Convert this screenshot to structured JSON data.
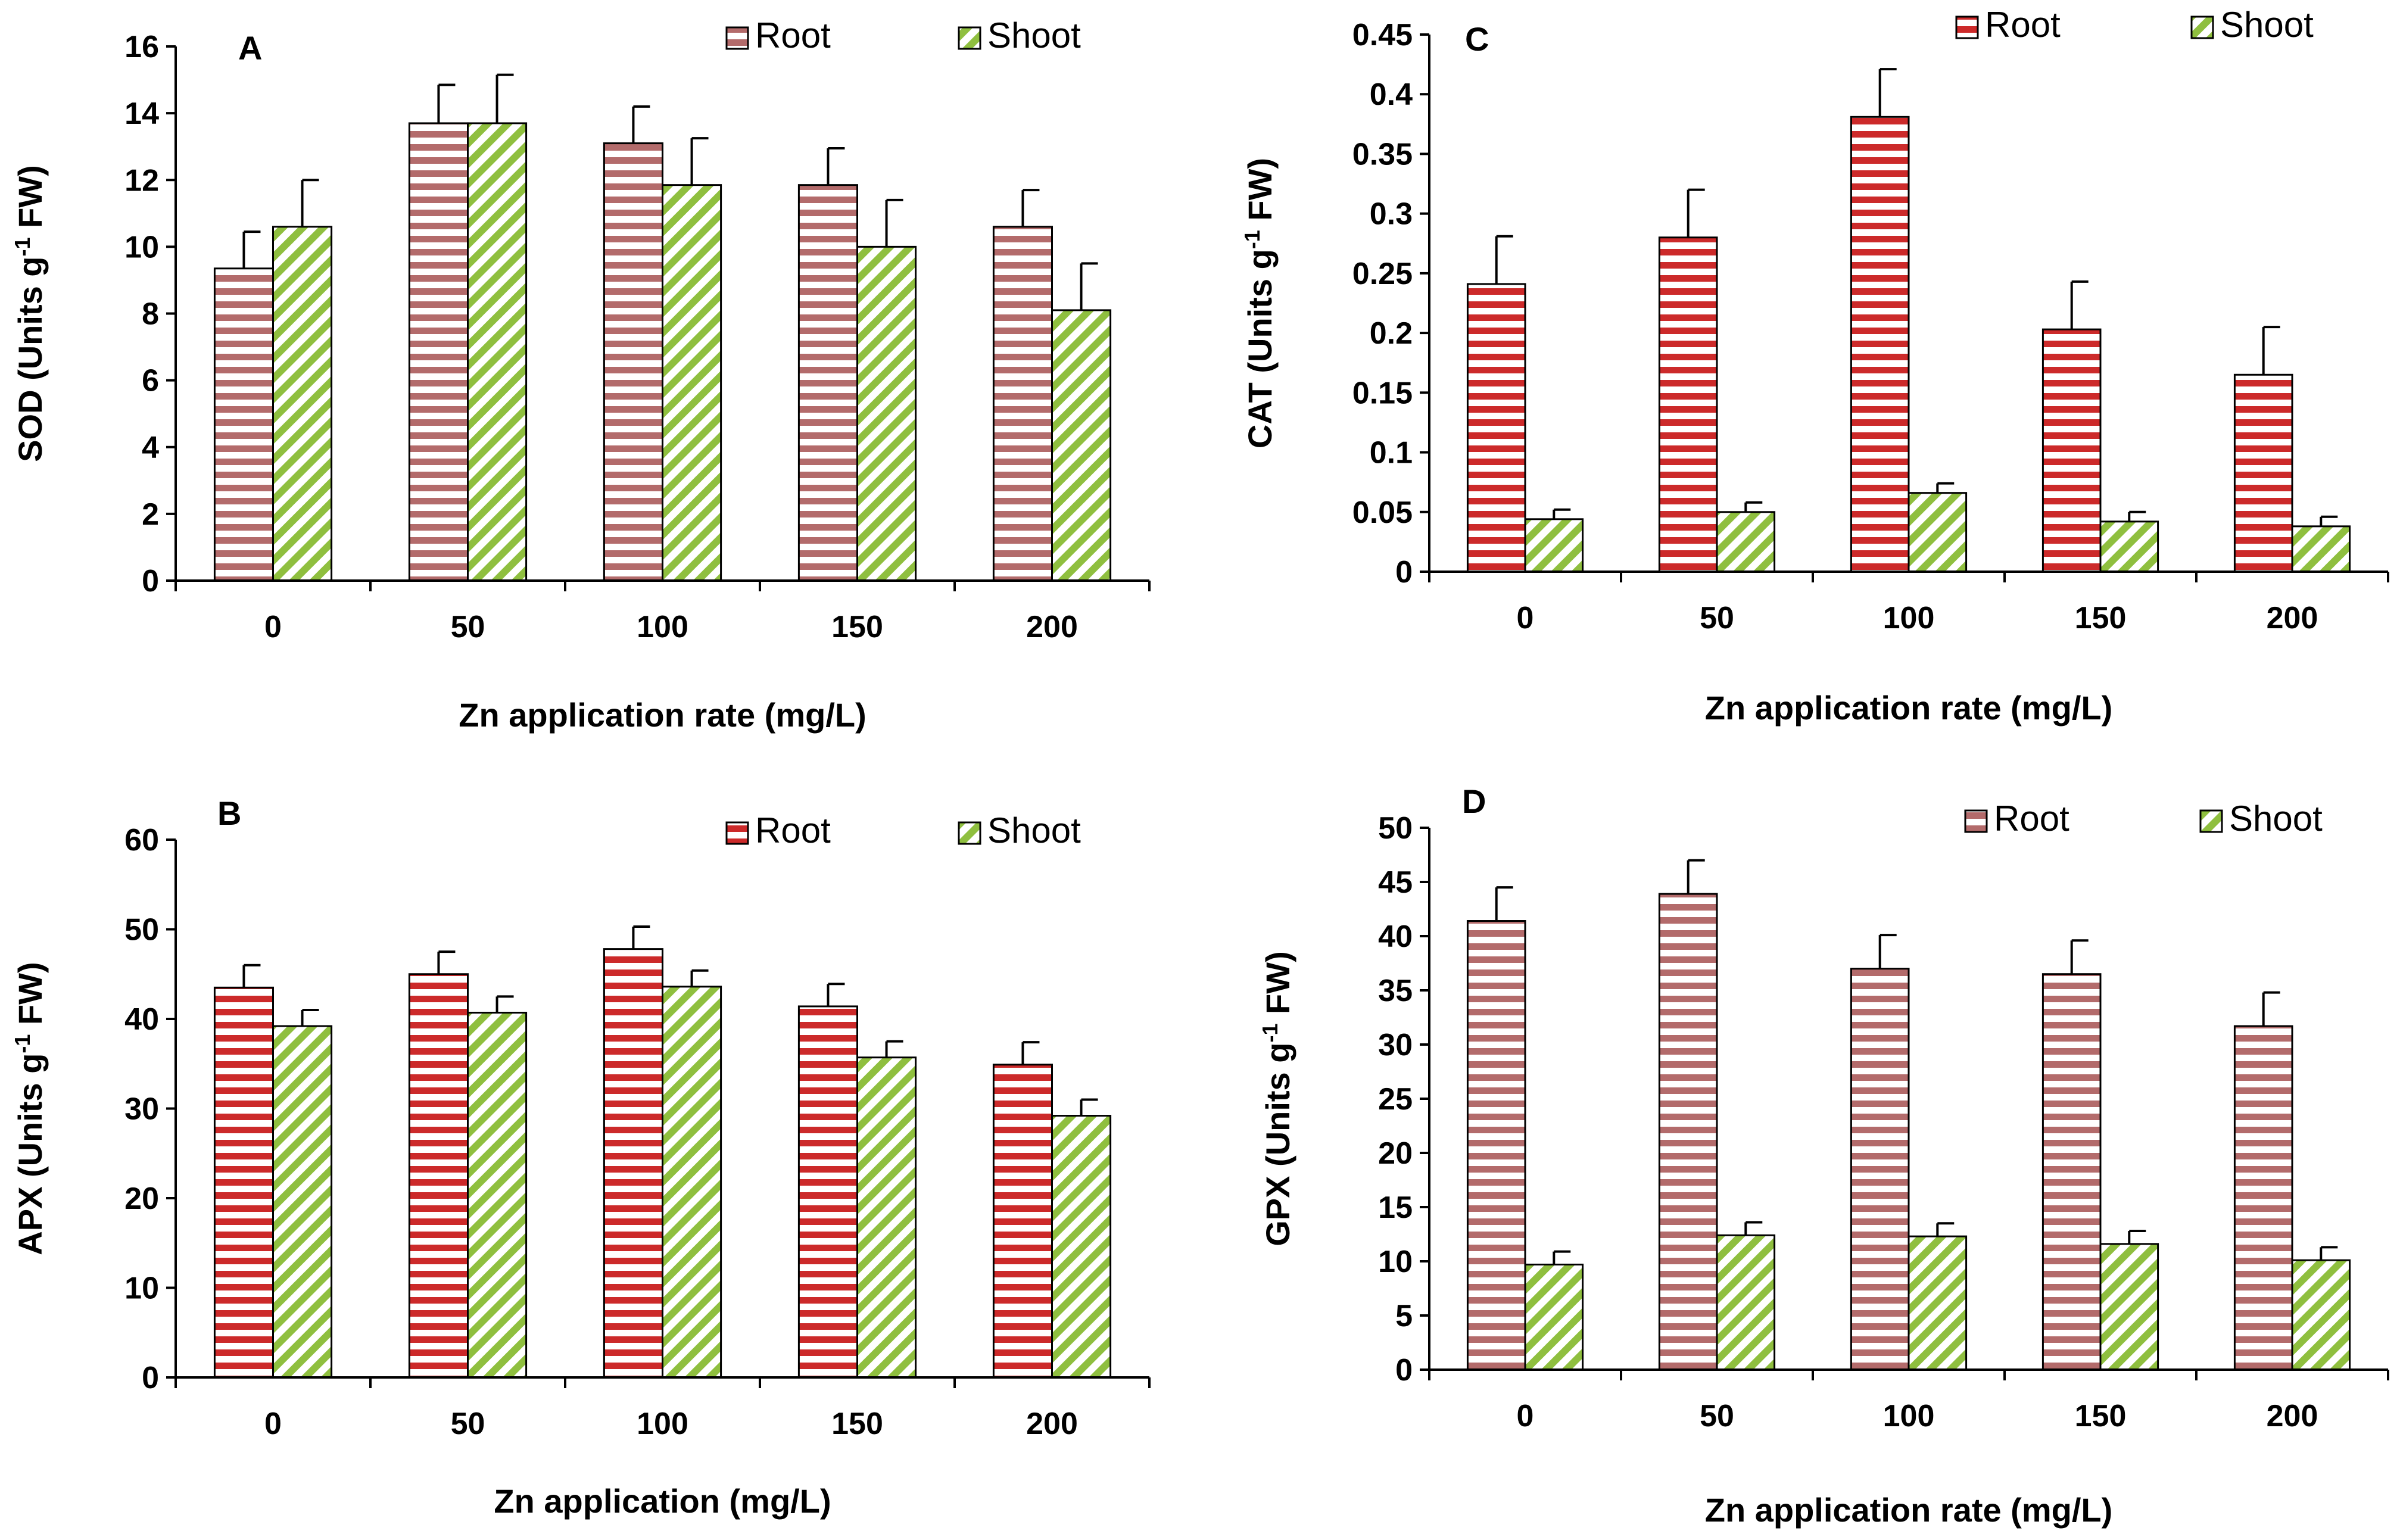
{
  "colors": {
    "root_fill": "#cc3333",
    "root_fill_light": "#b36b6b",
    "root_stripe": "#ffffff",
    "shoot_fill": "#8fbf3f",
    "shoot_stripe": "#ffffff",
    "axis": "#000000"
  },
  "chart_data": [
    {
      "panel": "A",
      "type": "bar",
      "root_style": "light",
      "categories": [
        "0",
        "50",
        "100",
        "150",
        "200"
      ],
      "series": [
        {
          "name": "Root",
          "values": [
            9.35,
            13.7,
            13.1,
            11.85,
            10.6
          ],
          "errors": [
            1.1,
            1.15,
            1.1,
            1.1,
            1.1
          ]
        },
        {
          "name": "Shoot",
          "values": [
            10.6,
            13.7,
            11.85,
            10.0,
            8.1
          ],
          "errors": [
            1.4,
            1.45,
            1.4,
            1.4,
            1.4
          ]
        }
      ],
      "ylabel_main": "SOD (Units g",
      "ylabel_sup": "-1",
      "ylabel_tail": " FW)",
      "xlabel": "Zn application rate (mg/L)",
      "ylim": [
        0,
        16
      ],
      "yticks": [
        "0",
        "2",
        "4",
        "6",
        "8",
        "10",
        "12",
        "14",
        "16"
      ],
      "legend_position": "top-right"
    },
    {
      "panel": "B",
      "type": "bar",
      "root_style": "bright",
      "categories": [
        "0",
        "50",
        "100",
        "150",
        "200"
      ],
      "series": [
        {
          "name": "Root",
          "values": [
            43.5,
            45.0,
            47.8,
            41.4,
            34.9
          ],
          "errors": [
            2.5,
            2.5,
            2.5,
            2.5,
            2.5
          ]
        },
        {
          "name": "Shoot",
          "values": [
            39.2,
            40.7,
            43.6,
            35.7,
            29.2
          ],
          "errors": [
            1.8,
            1.8,
            1.8,
            1.8,
            1.8
          ]
        }
      ],
      "ylabel_main": "APX (Units g",
      "ylabel_sup": "-1",
      "ylabel_tail": " FW)",
      "xlabel": "Zn application (mg/L)",
      "ylim": [
        0,
        60
      ],
      "yticks": [
        "0",
        "10",
        "20",
        "30",
        "40",
        "50",
        "60"
      ],
      "legend_position": "top-right"
    },
    {
      "panel": "C",
      "type": "bar",
      "root_style": "bright",
      "categories": [
        "0",
        "50",
        "100",
        "150",
        "200"
      ],
      "series": [
        {
          "name": "Root",
          "values": [
            0.241,
            0.28,
            0.381,
            0.203,
            0.165
          ],
          "errors": [
            0.04,
            0.04,
            0.04,
            0.04,
            0.04
          ]
        },
        {
          "name": "Shoot",
          "values": [
            0.044,
            0.05,
            0.066,
            0.042,
            0.038
          ],
          "errors": [
            0.008,
            0.008,
            0.008,
            0.008,
            0.008
          ]
        }
      ],
      "ylabel_main": "CAT (Units g",
      "ylabel_sup": "-1",
      "ylabel_tail": " FW)",
      "xlabel": "Zn application rate (mg/L)",
      "ylim": [
        0,
        0.45
      ],
      "yticks": [
        "0",
        "0.05",
        "0.1",
        "0.15",
        "0.2",
        "0.25",
        "0.3",
        "0.35",
        "0.4",
        "0.45"
      ],
      "legend_position": "top-right"
    },
    {
      "panel": "D",
      "type": "bar",
      "root_style": "light",
      "categories": [
        "0",
        "50",
        "100",
        "150",
        "200"
      ],
      "series": [
        {
          "name": "Root",
          "values": [
            41.4,
            43.9,
            37.0,
            36.5,
            31.7
          ],
          "errors": [
            3.1,
            3.1,
            3.1,
            3.1,
            3.1
          ]
        },
        {
          "name": "Shoot",
          "values": [
            9.7,
            12.4,
            12.3,
            11.6,
            10.1
          ],
          "errors": [
            1.2,
            1.2,
            1.2,
            1.2,
            1.2
          ]
        }
      ],
      "ylabel_main": "GPX (Units g",
      "ylabel_sup": "-1",
      "ylabel_tail": " FW)",
      "xlabel": "Zn application rate (mg/L)",
      "ylim": [
        0,
        50
      ],
      "yticks": [
        "0",
        "5",
        "10",
        "15",
        "20",
        "25",
        "30",
        "35",
        "40",
        "45",
        "50"
      ],
      "legend_position": "top-right"
    }
  ]
}
